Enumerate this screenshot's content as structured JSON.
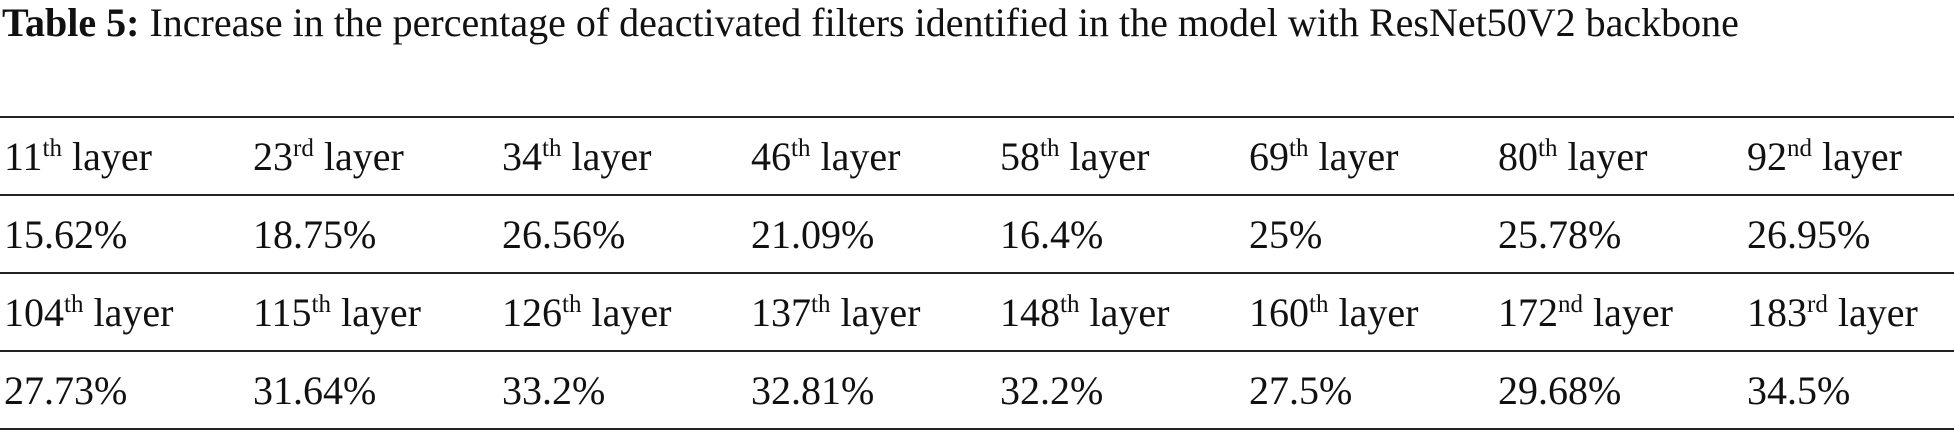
{
  "caption": {
    "label": "Table 5:",
    "text": "Increase in the percentage of deactivated filters identified in the model with ResNet50V2 backbone"
  },
  "table": {
    "rows": [
      [
        {
          "n": "11",
          "sup": "th",
          "rest": "layer"
        },
        {
          "n": "23",
          "sup": "rd",
          "rest": "layer"
        },
        {
          "n": "34",
          "sup": "th",
          "rest": "layer"
        },
        {
          "n": "46",
          "sup": "th",
          "rest": "layer"
        },
        {
          "n": "58",
          "sup": "th",
          "rest": "layer"
        },
        {
          "n": "69",
          "sup": "th",
          "rest": "layer"
        },
        {
          "n": "80",
          "sup": "th",
          "rest": "layer"
        },
        {
          "n": "92",
          "sup": "nd",
          "rest": "layer"
        }
      ],
      [
        "15.62%",
        "18.75%",
        "26.56%",
        "21.09%",
        "16.4%",
        "25%",
        "25.78%",
        "26.95%"
      ],
      [
        {
          "n": "104",
          "sup": "th",
          "rest": "layer"
        },
        {
          "n": "115",
          "sup": "th",
          "rest": "layer"
        },
        {
          "n": "126",
          "sup": "th",
          "rest": "layer"
        },
        {
          "n": "137",
          "sup": "th",
          "rest": "layer"
        },
        {
          "n": "148",
          "sup": "th",
          "rest": "layer"
        },
        {
          "n": "160",
          "sup": "th",
          "rest": "layer"
        },
        {
          "n": "172",
          "sup": "nd",
          "rest": "layer"
        },
        {
          "n": "183",
          "sup": "rd",
          "rest": "layer"
        }
      ],
      [
        "27.73%",
        "31.64%",
        "33.2%",
        "32.81%",
        "32.2%",
        "27.5%",
        "29.68%",
        "34.5%"
      ]
    ]
  }
}
